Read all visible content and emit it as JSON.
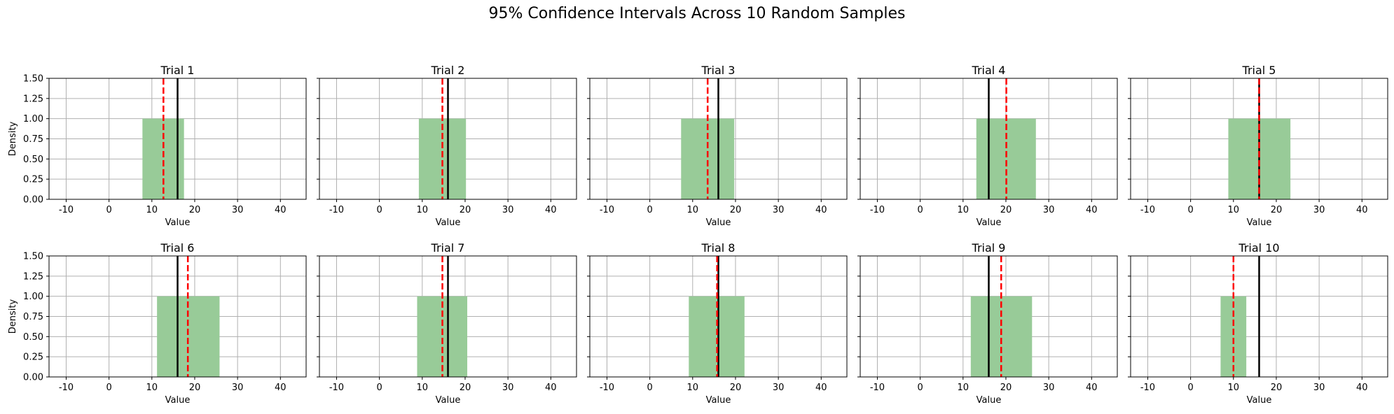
{
  "figure": {
    "title": "95% Confidence Intervals Across 10 Random Samples"
  },
  "chart_data": {
    "type": "bar",
    "title": "95% Confidence Intervals Across 10 Random Samples",
    "xlabel": "Value",
    "ylabel": "Density",
    "xlim": [
      -14,
      46
    ],
    "ylim": [
      0,
      1.5
    ],
    "xticks": [
      -10,
      0,
      10,
      20,
      30,
      40
    ],
    "yticks": [
      "0.00",
      "0.25",
      "0.50",
      "0.75",
      "1.00",
      "1.25",
      "1.50"
    ],
    "grid": true,
    "colors": {
      "interval_fill": "#98cb98",
      "true_mean_line": "#000000",
      "sample_mean_line": "#ff0000",
      "grid": "#b0b0b0"
    },
    "panels": [
      {
        "title": "Trial 1",
        "interval": [
          7.8,
          17.5
        ],
        "height": 1.0,
        "true_mean": 16,
        "sample_mean": 12.7
      },
      {
        "title": "Trial 2",
        "interval": [
          9.2,
          20.2
        ],
        "height": 1.0,
        "true_mean": 16,
        "sample_mean": 14.7
      },
      {
        "title": "Trial 3",
        "interval": [
          7.3,
          19.7
        ],
        "height": 1.0,
        "true_mean": 16,
        "sample_mean": 13.5
      },
      {
        "title": "Trial 4",
        "interval": [
          13.1,
          27.0
        ],
        "height": 1.0,
        "true_mean": 16,
        "sample_mean": 20.1
      },
      {
        "title": "Trial 5",
        "interval": [
          8.8,
          23.3
        ],
        "height": 1.0,
        "true_mean": 16,
        "sample_mean": 16.0
      },
      {
        "title": "Trial 6",
        "interval": [
          11.2,
          25.8
        ],
        "height": 1.0,
        "true_mean": 16,
        "sample_mean": 18.4
      },
      {
        "title": "Trial 7",
        "interval": [
          8.8,
          20.5
        ],
        "height": 1.0,
        "true_mean": 16,
        "sample_mean": 14.7
      },
      {
        "title": "Trial 8",
        "interval": [
          9.1,
          22.1
        ],
        "height": 1.0,
        "true_mean": 16,
        "sample_mean": 15.7
      },
      {
        "title": "Trial 9",
        "interval": [
          11.8,
          26.1
        ],
        "height": 1.0,
        "true_mean": 16,
        "sample_mean": 18.9
      },
      {
        "title": "Trial 10",
        "interval": [
          7.0,
          13.0
        ],
        "height": 1.0,
        "true_mean": 16,
        "sample_mean": 10.0
      }
    ]
  }
}
